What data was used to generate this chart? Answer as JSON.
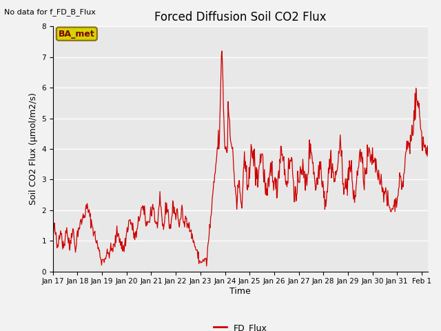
{
  "title": "Forced Diffusion Soil CO2 Flux",
  "xlabel": "Time",
  "ylabel": "Soil CO2 Flux (μmol/m2/s)",
  "top_left_text": "No data for f_FD_B_Flux",
  "legend_label": "FD_Flux",
  "legend_box_label": "BA_met",
  "ylim": [
    0.0,
    8.0
  ],
  "yticks": [
    0.0,
    1.0,
    2.0,
    3.0,
    4.0,
    5.0,
    6.0,
    7.0,
    8.0
  ],
  "line_color": "#cc0000",
  "fig_bg_color": "#f2f2f2",
  "plot_bg_color": "#e8e8e8",
  "legend_box_bg": "#d4d400",
  "legend_box_border": "#8b6914",
  "grid_color": "#ffffff",
  "title_fontsize": 12,
  "tick_fontsize": 7.5,
  "ylabel_fontsize": 9,
  "xlabel_fontsize": 9
}
